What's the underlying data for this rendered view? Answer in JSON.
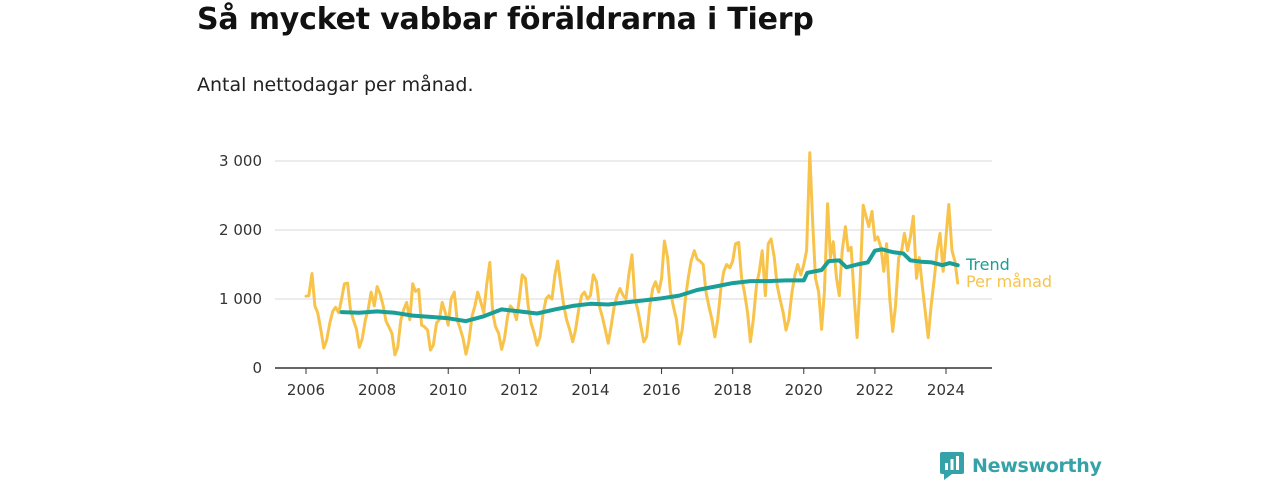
{
  "chart_data": {
    "type": "line",
    "title": "Så mycket vabbar föräldrarna i Tierp",
    "subtitle": "Antal nettodagar per månad.",
    "xlabel": "",
    "ylabel": "",
    "xlim": [
      2005.5,
      2025.0
    ],
    "ylim": [
      0,
      3150
    ],
    "grid": true,
    "x_ticks": [
      {
        "value": 2006,
        "label": "2006"
      },
      {
        "value": 2008,
        "label": "2008"
      },
      {
        "value": 2010,
        "label": "2010"
      },
      {
        "value": 2012,
        "label": "2012"
      },
      {
        "value": 2014,
        "label": "2014"
      },
      {
        "value": 2016,
        "label": "2016"
      },
      {
        "value": 2018,
        "label": "2018"
      },
      {
        "value": 2020,
        "label": "2020"
      },
      {
        "value": 2022,
        "label": "2022"
      },
      {
        "value": 2024,
        "label": "2024"
      }
    ],
    "y_ticks": [
      {
        "value": 0,
        "label": "0"
      },
      {
        "value": 1000,
        "label": "1 000"
      },
      {
        "value": 2000,
        "label": "2 000"
      },
      {
        "value": 3000,
        "label": "3 000"
      }
    ],
    "series": [
      {
        "name": "Per månad",
        "color": "#f8c34b",
        "points": [
          [
            2006.0,
            1040
          ],
          [
            2006.08,
            1050
          ],
          [
            2006.17,
            1370
          ],
          [
            2006.25,
            900
          ],
          [
            2006.33,
            800
          ],
          [
            2006.42,
            550
          ],
          [
            2006.5,
            290
          ],
          [
            2006.58,
            400
          ],
          [
            2006.67,
            650
          ],
          [
            2006.75,
            820
          ],
          [
            2006.83,
            880
          ],
          [
            2006.92,
            800
          ],
          [
            2007.0,
            1000
          ],
          [
            2007.08,
            1220
          ],
          [
            2007.17,
            1230
          ],
          [
            2007.25,
            850
          ],
          [
            2007.33,
            700
          ],
          [
            2007.42,
            560
          ],
          [
            2007.5,
            300
          ],
          [
            2007.58,
            420
          ],
          [
            2007.67,
            700
          ],
          [
            2007.75,
            850
          ],
          [
            2007.83,
            1100
          ],
          [
            2007.92,
            900
          ],
          [
            2008.0,
            1180
          ],
          [
            2008.08,
            1080
          ],
          [
            2008.17,
            900
          ],
          [
            2008.25,
            680
          ],
          [
            2008.33,
            600
          ],
          [
            2008.42,
            500
          ],
          [
            2008.5,
            190
          ],
          [
            2008.58,
            300
          ],
          [
            2008.67,
            700
          ],
          [
            2008.75,
            850
          ],
          [
            2008.83,
            950
          ],
          [
            2008.92,
            700
          ],
          [
            2009.0,
            1220
          ],
          [
            2009.08,
            1110
          ],
          [
            2009.17,
            1140
          ],
          [
            2009.25,
            620
          ],
          [
            2009.33,
            600
          ],
          [
            2009.42,
            550
          ],
          [
            2009.5,
            260
          ],
          [
            2009.58,
            330
          ],
          [
            2009.67,
            650
          ],
          [
            2009.75,
            700
          ],
          [
            2009.83,
            950
          ],
          [
            2009.92,
            800
          ],
          [
            2010.0,
            620
          ],
          [
            2010.08,
            1000
          ],
          [
            2010.17,
            1100
          ],
          [
            2010.25,
            700
          ],
          [
            2010.33,
            580
          ],
          [
            2010.42,
            420
          ],
          [
            2010.5,
            200
          ],
          [
            2010.58,
            380
          ],
          [
            2010.67,
            750
          ],
          [
            2010.75,
            900
          ],
          [
            2010.83,
            1100
          ],
          [
            2010.92,
            950
          ],
          [
            2011.0,
            800
          ],
          [
            2011.08,
            1200
          ],
          [
            2011.17,
            1530
          ],
          [
            2011.25,
            800
          ],
          [
            2011.33,
            600
          ],
          [
            2011.42,
            500
          ],
          [
            2011.5,
            270
          ],
          [
            2011.58,
            420
          ],
          [
            2011.67,
            750
          ],
          [
            2011.75,
            900
          ],
          [
            2011.83,
            850
          ],
          [
            2011.92,
            700
          ],
          [
            2012.0,
            1000
          ],
          [
            2012.08,
            1350
          ],
          [
            2012.17,
            1300
          ],
          [
            2012.25,
            900
          ],
          [
            2012.33,
            650
          ],
          [
            2012.42,
            500
          ],
          [
            2012.5,
            330
          ],
          [
            2012.58,
            450
          ],
          [
            2012.67,
            800
          ],
          [
            2012.75,
            1000
          ],
          [
            2012.83,
            1050
          ],
          [
            2012.92,
            1000
          ],
          [
            2013.0,
            1350
          ],
          [
            2013.08,
            1550
          ],
          [
            2013.17,
            1200
          ],
          [
            2013.25,
            900
          ],
          [
            2013.33,
            700
          ],
          [
            2013.42,
            550
          ],
          [
            2013.5,
            380
          ],
          [
            2013.58,
            550
          ],
          [
            2013.67,
            850
          ],
          [
            2013.75,
            1050
          ],
          [
            2013.83,
            1100
          ],
          [
            2013.92,
            1000
          ],
          [
            2014.0,
            1050
          ],
          [
            2014.08,
            1350
          ],
          [
            2014.17,
            1250
          ],
          [
            2014.25,
            900
          ],
          [
            2014.33,
            750
          ],
          [
            2014.42,
            550
          ],
          [
            2014.5,
            360
          ],
          [
            2014.58,
            600
          ],
          [
            2014.67,
            900
          ],
          [
            2014.75,
            1050
          ],
          [
            2014.83,
            1150
          ],
          [
            2014.92,
            1050
          ],
          [
            2015.0,
            1000
          ],
          [
            2015.08,
            1350
          ],
          [
            2015.17,
            1640
          ],
          [
            2015.25,
            1000
          ],
          [
            2015.33,
            850
          ],
          [
            2015.42,
            600
          ],
          [
            2015.5,
            380
          ],
          [
            2015.58,
            450
          ],
          [
            2015.67,
            900
          ],
          [
            2015.75,
            1150
          ],
          [
            2015.83,
            1250
          ],
          [
            2015.92,
            1100
          ],
          [
            2016.0,
            1300
          ],
          [
            2016.08,
            1840
          ],
          [
            2016.17,
            1600
          ],
          [
            2016.25,
            1100
          ],
          [
            2016.33,
            900
          ],
          [
            2016.42,
            700
          ],
          [
            2016.5,
            350
          ],
          [
            2016.58,
            550
          ],
          [
            2016.67,
            1000
          ],
          [
            2016.75,
            1300
          ],
          [
            2016.83,
            1550
          ],
          [
            2016.92,
            1700
          ],
          [
            2017.0,
            1580
          ],
          [
            2017.08,
            1550
          ],
          [
            2017.17,
            1500
          ],
          [
            2017.25,
            1100
          ],
          [
            2017.33,
            900
          ],
          [
            2017.42,
            700
          ],
          [
            2017.5,
            450
          ],
          [
            2017.58,
            700
          ],
          [
            2017.67,
            1150
          ],
          [
            2017.75,
            1400
          ],
          [
            2017.83,
            1500
          ],
          [
            2017.92,
            1450
          ],
          [
            2018.0,
            1550
          ],
          [
            2018.08,
            1800
          ],
          [
            2018.17,
            1820
          ],
          [
            2018.25,
            1300
          ],
          [
            2018.33,
            1100
          ],
          [
            2018.42,
            800
          ],
          [
            2018.5,
            380
          ],
          [
            2018.58,
            700
          ],
          [
            2018.67,
            1200
          ],
          [
            2018.75,
            1400
          ],
          [
            2018.83,
            1700
          ],
          [
            2018.92,
            1050
          ],
          [
            2019.0,
            1800
          ],
          [
            2019.08,
            1870
          ],
          [
            2019.17,
            1600
          ],
          [
            2019.25,
            1200
          ],
          [
            2019.33,
            1000
          ],
          [
            2019.42,
            800
          ],
          [
            2019.5,
            550
          ],
          [
            2019.58,
            700
          ],
          [
            2019.67,
            1100
          ],
          [
            2019.75,
            1350
          ],
          [
            2019.83,
            1500
          ],
          [
            2019.92,
            1350
          ],
          [
            2020.0,
            1500
          ],
          [
            2020.08,
            1700
          ],
          [
            2020.17,
            3120
          ],
          [
            2020.25,
            2100
          ],
          [
            2020.33,
            1300
          ],
          [
            2020.42,
            1100
          ],
          [
            2020.5,
            560
          ],
          [
            2020.58,
            1100
          ],
          [
            2020.67,
            2380
          ],
          [
            2020.75,
            1600
          ],
          [
            2020.83,
            1830
          ],
          [
            2020.92,
            1300
          ],
          [
            2021.0,
            1050
          ],
          [
            2021.08,
            1700
          ],
          [
            2021.17,
            2050
          ],
          [
            2021.25,
            1700
          ],
          [
            2021.33,
            1750
          ],
          [
            2021.42,
            1000
          ],
          [
            2021.5,
            440
          ],
          [
            2021.58,
            1200
          ],
          [
            2021.67,
            2360
          ],
          [
            2021.75,
            2200
          ],
          [
            2021.83,
            2050
          ],
          [
            2021.92,
            2270
          ],
          [
            2022.0,
            1850
          ],
          [
            2022.08,
            1900
          ],
          [
            2022.17,
            1750
          ],
          [
            2022.25,
            1400
          ],
          [
            2022.33,
            1800
          ],
          [
            2022.42,
            1000
          ],
          [
            2022.5,
            530
          ],
          [
            2022.58,
            900
          ],
          [
            2022.67,
            1600
          ],
          [
            2022.75,
            1700
          ],
          [
            2022.83,
            1950
          ],
          [
            2022.92,
            1700
          ],
          [
            2023.0,
            1900
          ],
          [
            2023.08,
            2200
          ],
          [
            2023.17,
            1300
          ],
          [
            2023.25,
            1600
          ],
          [
            2023.33,
            1200
          ],
          [
            2023.42,
            800
          ],
          [
            2023.5,
            440
          ],
          [
            2023.58,
            900
          ],
          [
            2023.67,
            1300
          ],
          [
            2023.75,
            1700
          ],
          [
            2023.83,
            1950
          ],
          [
            2023.92,
            1400
          ],
          [
            2024.0,
            1900
          ],
          [
            2024.08,
            2370
          ],
          [
            2024.17,
            1700
          ],
          [
            2024.25,
            1550
          ],
          [
            2024.33,
            1230
          ]
        ]
      },
      {
        "name": "Trend",
        "color": "#1a9e97",
        "points": [
          [
            2007.0,
            810
          ],
          [
            2007.5,
            800
          ],
          [
            2008.0,
            820
          ],
          [
            2008.5,
            800
          ],
          [
            2009.0,
            760
          ],
          [
            2009.5,
            740
          ],
          [
            2010.0,
            720
          ],
          [
            2010.5,
            680
          ],
          [
            2011.0,
            750
          ],
          [
            2011.5,
            850
          ],
          [
            2012.0,
            820
          ],
          [
            2012.5,
            790
          ],
          [
            2013.0,
            850
          ],
          [
            2013.5,
            900
          ],
          [
            2014.0,
            930
          ],
          [
            2014.5,
            920
          ],
          [
            2015.0,
            950
          ],
          [
            2015.5,
            980
          ],
          [
            2016.0,
            1010
          ],
          [
            2016.5,
            1050
          ],
          [
            2017.0,
            1130
          ],
          [
            2017.5,
            1180
          ],
          [
            2018.0,
            1230
          ],
          [
            2018.5,
            1260
          ],
          [
            2019.0,
            1260
          ],
          [
            2019.5,
            1270
          ],
          [
            2020.0,
            1270
          ],
          [
            2020.1,
            1380
          ],
          [
            2020.5,
            1420
          ],
          [
            2020.7,
            1550
          ],
          [
            2021.0,
            1560
          ],
          [
            2021.2,
            1460
          ],
          [
            2021.5,
            1500
          ],
          [
            2021.8,
            1530
          ],
          [
            2022.0,
            1700
          ],
          [
            2022.2,
            1720
          ],
          [
            2022.5,
            1680
          ],
          [
            2022.8,
            1660
          ],
          [
            2023.0,
            1560
          ],
          [
            2023.3,
            1540
          ],
          [
            2023.6,
            1530
          ],
          [
            2023.9,
            1490
          ],
          [
            2024.1,
            1520
          ],
          [
            2024.33,
            1490
          ]
        ]
      }
    ],
    "legend_placement": "right-end-of-lines"
  },
  "brand": {
    "name": "Newsworthy",
    "icon": "newsworthy-logo-icon",
    "color": "#34a2a8"
  },
  "colors": {
    "gridline": "#d9d9d9",
    "axis": "#333333"
  }
}
